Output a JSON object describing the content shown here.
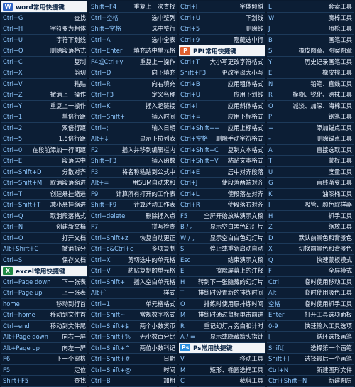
{
  "columns": [
    {
      "rows": [
        {
          "type": "header",
          "title": "word常用快捷键",
          "badge": "W",
          "color": "#2f64c6"
        },
        {
          "key": "Ctrl+G",
          "desc": "查找"
        },
        {
          "key": "Ctrl+H",
          "desc": "字符变为粗体"
        },
        {
          "key": "Ctrl+U",
          "desc": "字符下划线"
        },
        {
          "key": "Ctrl+Q",
          "desc": "删除段落格式"
        },
        {
          "key": "Ctrl+C",
          "desc": "复制"
        },
        {
          "key": "Ctrl+X",
          "desc": "剪切"
        },
        {
          "key": "Ctrl+V",
          "desc": "粘贴"
        },
        {
          "key": "Ctrl+Z",
          "desc": "撤消上一操作"
        },
        {
          "key": "Ctrl+Y",
          "desc": "重复上一操作"
        },
        {
          "key": "Ctrl+1",
          "desc": "单倍行距"
        },
        {
          "key": "Ctrl+2",
          "desc": "双倍行距"
        },
        {
          "key": "Ctrl+5",
          "desc": "1.5倍行距"
        },
        {
          "key": "Ctrl+0",
          "desc": "在段前添加一行间距"
        },
        {
          "key": "Ctrl+E",
          "desc": "段落居中"
        },
        {
          "key": "Ctrl+Shift+D",
          "desc": "分散对齐"
        },
        {
          "key": "Ctrl+Shift+M",
          "desc": "取消段落缩进"
        },
        {
          "key": "Ctrl+T",
          "desc": "创建悬挂缩进"
        },
        {
          "key": "Ctrl+Shift+T",
          "desc": "减小悬挂缩进"
        },
        {
          "key": "Ctrl+Q",
          "desc": "取消段落格式"
        },
        {
          "key": "Ctrl+N",
          "desc": "创建新文档"
        },
        {
          "key": "Ctrl+O",
          "desc": "打开文档"
        },
        {
          "key": "Alt+Shift+C",
          "desc": "撤消拆分"
        },
        {
          "key": "Ctrl+S",
          "desc": "保存文档"
        },
        {
          "type": "header",
          "title": "excel常用快捷键",
          "badge": "X",
          "color": "#1f8a45"
        },
        {
          "key": "Ctrl+Page down",
          "desc": "下一张表"
        },
        {
          "key": "Ctrl+Page up",
          "desc": "上一张表"
        },
        {
          "key": "home",
          "desc": "移动到行首"
        },
        {
          "key": "Ctrl+home",
          "desc": "移动到文件首"
        },
        {
          "key": "Ctrl+end",
          "desc": "移动到文件尾"
        },
        {
          "key": "Alt+Page down",
          "desc": "向右一屏"
        },
        {
          "key": "Alt+Page up",
          "desc": "向左一屏"
        },
        {
          "key": "F6",
          "desc": "下一个窗格"
        },
        {
          "key": "F5",
          "desc": "定位"
        },
        {
          "key": "Shift+F5",
          "desc": "查找"
        }
      ]
    },
    {
      "rows": [
        {
          "key": "Shift+F4",
          "desc": "重复上一次查找"
        },
        {
          "key": "Ctrl+空格",
          "desc": "选中整列"
        },
        {
          "key": "Shift+空格",
          "desc": "选中整行"
        },
        {
          "key": "Ctrl+A",
          "desc": "选中全表"
        },
        {
          "key": "Ctrl+Enter",
          "desc": "填充选中单元格"
        },
        {
          "key": "F4或Ctrl+y",
          "desc": "重复上一操作"
        },
        {
          "key": "Ctrl+D",
          "desc": "向下填充"
        },
        {
          "key": "Ctrl+R",
          "desc": "向右填充"
        },
        {
          "key": "Ctrl+F3",
          "desc": "定义名称"
        },
        {
          "key": "Ctrl+K",
          "desc": "插入超链接"
        },
        {
          "key": "Ctrl+Shift+:",
          "desc": "插入时间"
        },
        {
          "key": "Ctrl+;",
          "desc": "输入日期"
        },
        {
          "key": "Alt+↓",
          "desc": "显示下拉列表"
        },
        {
          "key": "F2",
          "desc": "插入并移到编辑栏内"
        },
        {
          "key": "Shift+F3",
          "desc": "插入函数"
        },
        {
          "key": "F3",
          "desc": "将名称粘贴到公式中"
        },
        {
          "key": "Alt+=",
          "desc": "用SUM自动求和"
        },
        {
          "key": "F9",
          "desc": "计算所有打开的工作表"
        },
        {
          "key": "Shift+F9",
          "desc": "计算活动工作表"
        },
        {
          "key": "Ctrl+delete",
          "desc": "删除插入点"
        },
        {
          "key": "F7",
          "desc": "拼写检查"
        },
        {
          "key": "Ctrl+Shift+z",
          "desc": "恢复自动更正"
        },
        {
          "key": "Ctrl+c&Ctrl+c",
          "desc": "多项复制"
        },
        {
          "key": "Ctrl+X",
          "desc": "剪切选中的单元格"
        },
        {
          "key": "Ctrl+V",
          "desc": "粘贴复制的单元格"
        },
        {
          "key": "Ctrl+Shift+",
          "desc": "插入空白单元格"
        },
        {
          "key": "Alt+`",
          "desc": "样式"
        },
        {
          "key": "Ctrl+1",
          "desc": "单元格格式"
        },
        {
          "key": "Ctrl+Shift~",
          "desc": "常规数字格式"
        },
        {
          "key": "Ctrl+Shift+$",
          "desc": "两个小数货币"
        },
        {
          "key": "Ctrl+Shift+%",
          "desc": "无小数百分比"
        },
        {
          "key": "Ctrl+Shift+^",
          "desc": "两位小数科记"
        },
        {
          "key": "Ctrl+Shift+#",
          "desc": "日期"
        },
        {
          "key": "Ctrl+Shift+@",
          "desc": "时间"
        },
        {
          "key": "Ctrl+B",
          "desc": "加粗"
        }
      ]
    },
    {
      "rows": [
        {
          "key": "Ctrl+I",
          "desc": "字体倾斜"
        },
        {
          "key": "Ctrl+U",
          "desc": "下划线"
        },
        {
          "key": "Ctrl+5",
          "desc": "删除线"
        },
        {
          "key": "Ctrl+9",
          "desc": "隐藏选中行"
        },
        {
          "type": "header",
          "title": "PPt常用快捷键",
          "badge": "P",
          "color": "#e06030"
        },
        {
          "key": "Ctrl+T",
          "desc": "大小写更改字符格式"
        },
        {
          "key": "Shift+F3",
          "desc": "更改字母大小写"
        },
        {
          "key": "Ctrl+B",
          "desc": "应用粗体格式"
        },
        {
          "key": "Ctrl+U",
          "desc": "应用下划线"
        },
        {
          "key": "Ctrl+l",
          "desc": "应用斜体格式"
        },
        {
          "key": "Ctrl+=",
          "desc": "应用下标格式"
        },
        {
          "key": "Ctrl+Shift++",
          "desc": "应用上标格式"
        },
        {
          "key": "Ctrl+空格",
          "desc": "删除手动字符格式"
        },
        {
          "key": "Ctrl+Shift+C",
          "desc": "复制文本格式"
        },
        {
          "key": "Ctrl+Shift+V",
          "desc": "粘贴文本格式"
        },
        {
          "key": "Ctrl+E",
          "desc": "居中对齐段落"
        },
        {
          "key": "Ctrl+J",
          "desc": "使段落两端对齐"
        },
        {
          "key": "Ctrl+L",
          "desc": "使段落左对齐"
        },
        {
          "key": "Ctrl+R",
          "desc": "使段落右对齐"
        },
        {
          "key": "F5",
          "desc": "全屏开始放映演示文稿"
        },
        {
          "key": "B / 。",
          "desc": "显示空白黑色幻灯片"
        },
        {
          "key": "W / ，",
          "desc": "显示空白白色幻灯片"
        },
        {
          "key": "S",
          "desc": "停止或重新启动自动"
        },
        {
          "key": "Esc",
          "desc": "结束演示文稿"
        },
        {
          "key": "E",
          "desc": "擦除屏幕上的注释"
        },
        {
          "key": "H",
          "desc": "转到下一张隐藏的幻灯片"
        },
        {
          "key": "T",
          "desc": "排练时设置新的排练时间"
        },
        {
          "key": "O",
          "desc": "排练时使用原排练时间"
        },
        {
          "key": "M",
          "desc": "排练时通过鼠标单击前进"
        },
        {
          "key": "R",
          "desc": "重记幻灯片旁白和计时"
        },
        {
          "key": "A / =",
          "desc": "显示或隐藏箭头指针"
        },
        {
          "type": "header",
          "title": "Ps常用快捷键",
          "badge": "Ps",
          "color": "#2a8fe0"
        },
        {
          "key": "V",
          "desc": "移动工具"
        },
        {
          "key": "M",
          "desc": "矩形、椭圆选框工具"
        },
        {
          "key": "C",
          "desc": "裁剪工具"
        }
      ]
    },
    {
      "rows": [
        {
          "key": "L",
          "desc": "套索工具"
        },
        {
          "key": "W",
          "desc": "魔棒工具"
        },
        {
          "key": "J",
          "desc": "喷枪工具"
        },
        {
          "key": "B",
          "desc": "画笔工具"
        },
        {
          "key": "S",
          "desc": "橡皮图章、图案图章"
        },
        {
          "key": "Y",
          "desc": "历史记录画笔工具"
        },
        {
          "key": "E",
          "desc": "橡皮擦工具"
        },
        {
          "key": "N",
          "desc": "铅笔、直线工具"
        },
        {
          "key": "R",
          "desc": "模糊、锐化、涂抹工具"
        },
        {
          "key": "O",
          "desc": "减淡、加深、海棉工具"
        },
        {
          "key": "P",
          "desc": "钢笔工具"
        },
        {
          "key": "+",
          "desc": "添加锚点工具"
        },
        {
          "key": "-",
          "desc": "删除锚点工具"
        },
        {
          "key": "A",
          "desc": "直接选取工具"
        },
        {
          "key": "T",
          "desc": "蒙板工具"
        },
        {
          "key": "U",
          "desc": "度量工具"
        },
        {
          "key": "G",
          "desc": "直线渐变工具"
        },
        {
          "key": "K",
          "desc": "油漆桶工具"
        },
        {
          "key": "I",
          "desc": "吸管、颜色取样器"
        },
        {
          "key": "H",
          "desc": "抓手工具"
        },
        {
          "key": "Z",
          "desc": "缩放工具"
        },
        {
          "key": "D",
          "desc": "默认前景色和背景色"
        },
        {
          "key": "X",
          "desc": "切换前景色和背景色"
        },
        {
          "key": "Q",
          "desc": "快速蒙板模式"
        },
        {
          "key": "F",
          "desc": "全屏模式"
        },
        {
          "key": "Ctrl",
          "desc": "临时使用移动工具"
        },
        {
          "key": "Alt",
          "desc": "临时使用吸色工具"
        },
        {
          "key": "空格",
          "desc": "临时使用抓手工具"
        },
        {
          "key": "Enter",
          "desc": "打开工具选项面板"
        },
        {
          "key": "0-9",
          "desc": "快速输入工具选项"
        },
        {
          "key": "[",
          "desc": "循环选择画笔"
        },
        {
          "key": "Shift[",
          "desc": "选择第一个画笔"
        },
        {
          "key": "Shift+]",
          "desc": "选择最后一个画笔"
        },
        {
          "key": "Ctrl+N",
          "desc": "新建图形文件"
        },
        {
          "key": "Ctrl+Shift+N",
          "desc": "新建图层"
        }
      ]
    }
  ]
}
